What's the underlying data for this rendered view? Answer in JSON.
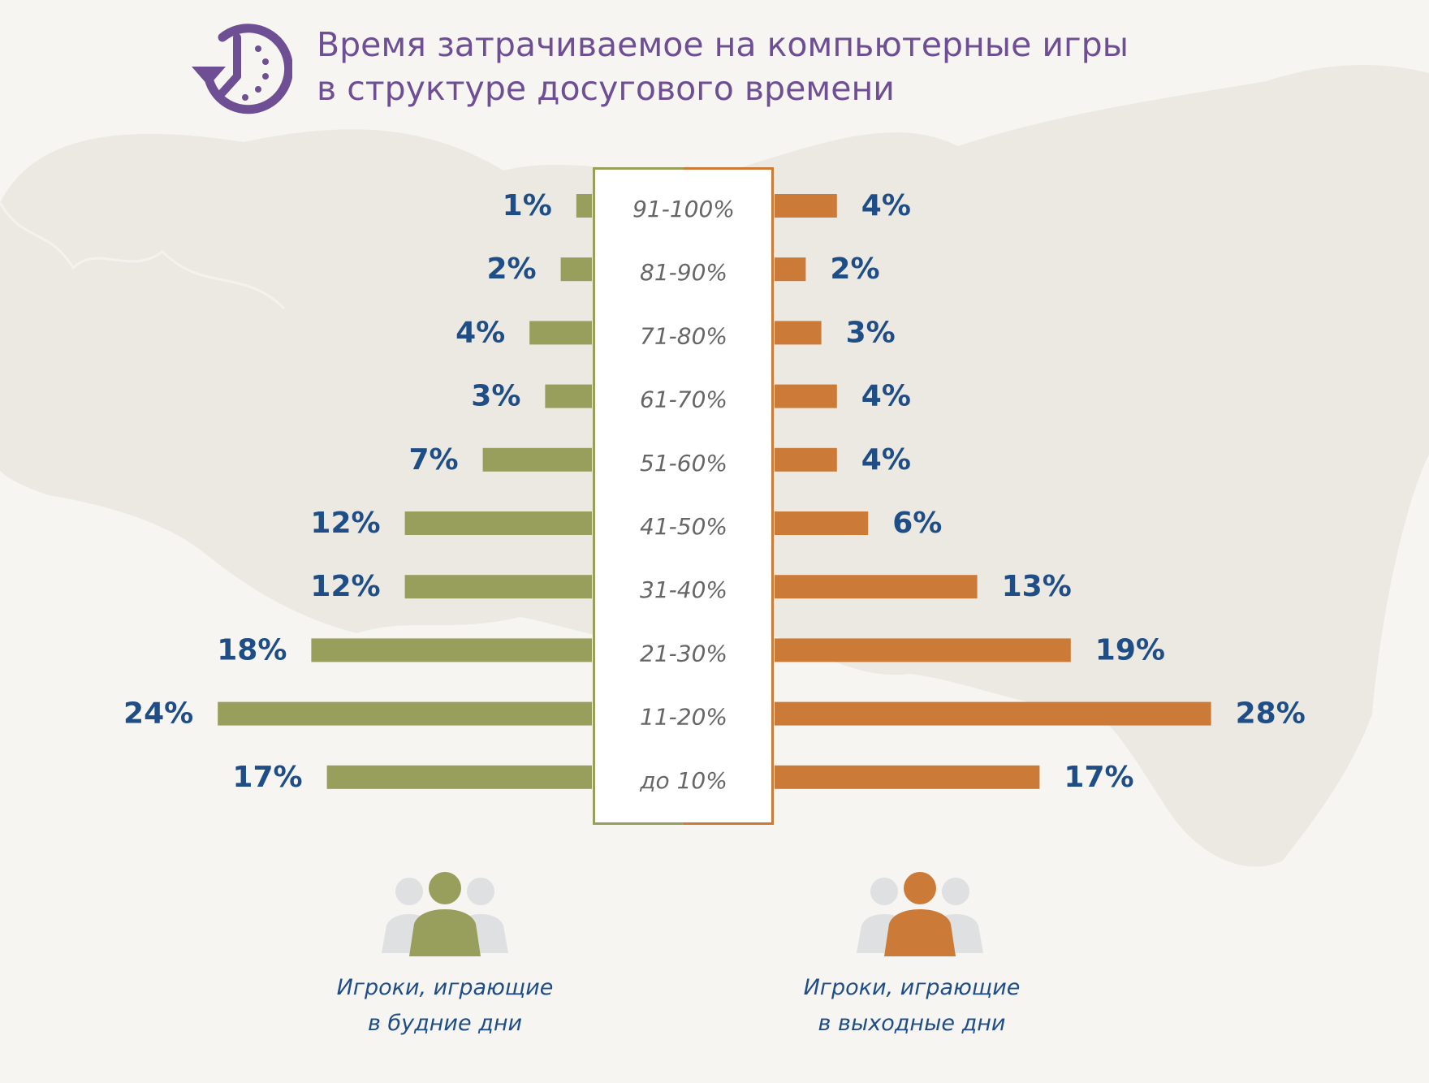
{
  "title": {
    "line1": "Время затрачиваемое на компьютерные игры",
    "line2": "в структуре досугового времени"
  },
  "icons": {
    "title_icon": "clock-icon",
    "legend_weekday_icon": "users-group-icon",
    "legend_weekend_icon": "users-group-icon"
  },
  "colors": {
    "weekday": "#989e5c",
    "weekend": "#cc7a38",
    "value_text": "#1f4e86",
    "title": "#6e4f93",
    "category_text": "#666666",
    "map": "#ece9e3"
  },
  "legend": {
    "weekday_line1": "Игроки, играющие",
    "weekday_line2": "в будние дни",
    "weekend_line1": "Игроки, играющие",
    "weekend_line2": "в выходные дни"
  },
  "chart_data": {
    "type": "bar",
    "orientation": "horizontal-diverging",
    "categories": [
      "91-100%",
      "81-90%",
      "71-80%",
      "61-70%",
      "51-60%",
      "41-50%",
      "31-40%",
      "21-30%",
      "11-20%",
      "до 10%"
    ],
    "series": [
      {
        "name": "Игроки, играющие в будние дни",
        "side": "left",
        "values": [
          1,
          2,
          4,
          3,
          7,
          12,
          12,
          18,
          24,
          17
        ],
        "labels": [
          "1%",
          "2%",
          "4%",
          "3%",
          "7%",
          "12%",
          "12%",
          "18%",
          "24%",
          "17%"
        ]
      },
      {
        "name": "Игроки, играющие в выходные дни",
        "side": "right",
        "values": [
          4,
          2,
          3,
          4,
          4,
          6,
          13,
          19,
          28,
          17
        ],
        "labels": [
          "4%",
          "2%",
          "3%",
          "4%",
          "4%",
          "6%",
          "13%",
          "19%",
          "28%",
          "17%"
        ]
      }
    ],
    "unit": "%",
    "grid": false
  }
}
